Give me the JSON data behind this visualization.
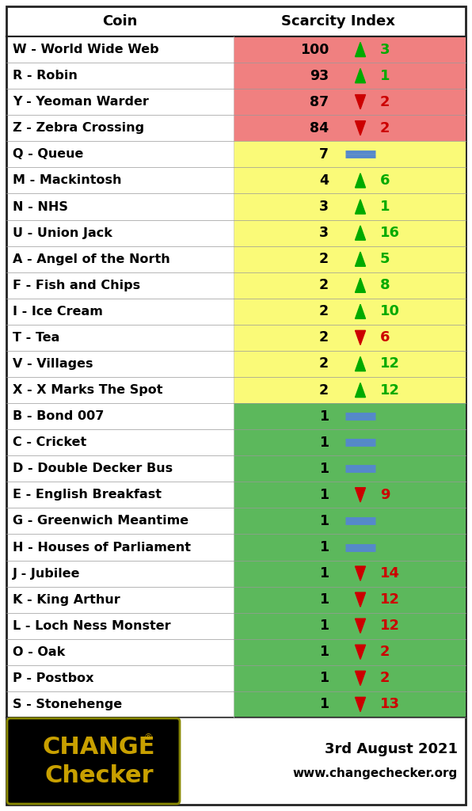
{
  "col_header_coin": "Coin",
  "col_header_index": "Scarcity Index",
  "rows": [
    {
      "coin": "W - World Wide Web",
      "index": 100,
      "arrow": "up",
      "change": "3",
      "bg": "#F08080"
    },
    {
      "coin": "R - Robin",
      "index": 93,
      "arrow": "up",
      "change": "1",
      "bg": "#F08080"
    },
    {
      "coin": "Y - Yeoman Warder",
      "index": 87,
      "arrow": "down",
      "change": "2",
      "bg": "#F08080"
    },
    {
      "coin": "Z - Zebra Crossing",
      "index": 84,
      "arrow": "down",
      "change": "2",
      "bg": "#F08080"
    },
    {
      "coin": "Q - Queue",
      "index": 7,
      "arrow": "flat",
      "change": "",
      "bg": "#FAFA78"
    },
    {
      "coin": "M - Mackintosh",
      "index": 4,
      "arrow": "up",
      "change": "6",
      "bg": "#FAFA78"
    },
    {
      "coin": "N - NHS",
      "index": 3,
      "arrow": "up",
      "change": "1",
      "bg": "#FAFA78"
    },
    {
      "coin": "U - Union Jack",
      "index": 3,
      "arrow": "up",
      "change": "16",
      "bg": "#FAFA78"
    },
    {
      "coin": "A - Angel of the North",
      "index": 2,
      "arrow": "up",
      "change": "5",
      "bg": "#FAFA78"
    },
    {
      "coin": "F - Fish and Chips",
      "index": 2,
      "arrow": "up",
      "change": "8",
      "bg": "#FAFA78"
    },
    {
      "coin": "I - Ice Cream",
      "index": 2,
      "arrow": "up",
      "change": "10",
      "bg": "#FAFA78"
    },
    {
      "coin": "T - Tea",
      "index": 2,
      "arrow": "down",
      "change": "6",
      "bg": "#FAFA78"
    },
    {
      "coin": "V - Villages",
      "index": 2,
      "arrow": "up",
      "change": "12",
      "bg": "#FAFA78"
    },
    {
      "coin": "X - X Marks The Spot",
      "index": 2,
      "arrow": "up",
      "change": "12",
      "bg": "#FAFA78"
    },
    {
      "coin": "B - Bond 007",
      "index": 1,
      "arrow": "flat",
      "change": "",
      "bg": "#5CB85C"
    },
    {
      "coin": "C - Cricket",
      "index": 1,
      "arrow": "flat",
      "change": "",
      "bg": "#5CB85C"
    },
    {
      "coin": "D - Double Decker Bus",
      "index": 1,
      "arrow": "flat",
      "change": "",
      "bg": "#5CB85C"
    },
    {
      "coin": "E - English Breakfast",
      "index": 1,
      "arrow": "down",
      "change": "9",
      "bg": "#5CB85C"
    },
    {
      "coin": "G - Greenwich Meantime",
      "index": 1,
      "arrow": "flat",
      "change": "",
      "bg": "#5CB85C"
    },
    {
      "coin": "H - Houses of Parliament",
      "index": 1,
      "arrow": "flat",
      "change": "",
      "bg": "#5CB85C"
    },
    {
      "coin": "J - Jubilee",
      "index": 1,
      "arrow": "down",
      "change": "14",
      "bg": "#5CB85C"
    },
    {
      "coin": "K - King Arthur",
      "index": 1,
      "arrow": "down",
      "change": "12",
      "bg": "#5CB85C"
    },
    {
      "coin": "L - Loch Ness Monster",
      "index": 1,
      "arrow": "down",
      "change": "12",
      "bg": "#5CB85C"
    },
    {
      "coin": "O - Oak",
      "index": 1,
      "arrow": "down",
      "change": "2",
      "bg": "#5CB85C"
    },
    {
      "coin": "P - Postbox",
      "index": 1,
      "arrow": "down",
      "change": "2",
      "bg": "#5CB85C"
    },
    {
      "coin": "S - Stonehenge",
      "index": 1,
      "arrow": "down",
      "change": "13",
      "bg": "#5CB85C"
    }
  ],
  "footer_date": "3rd August 2021",
  "footer_url": "www.changechecker.org",
  "border_color": "#222222",
  "arrow_up_color": "#00AA00",
  "arrow_down_color": "#CC0000",
  "flat_color": "#5588CC",
  "text_color": "#000000",
  "header_fontsize": 13,
  "row_fontsize": 11.5,
  "index_fontsize": 12.5,
  "change_fontsize": 13
}
